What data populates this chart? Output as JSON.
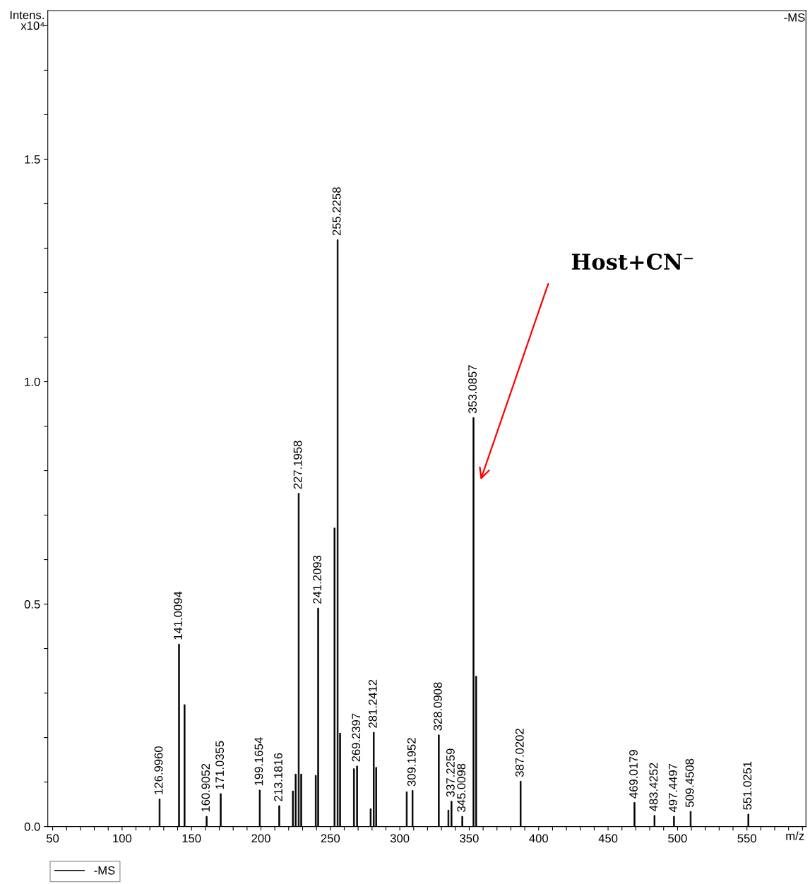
{
  "chart_data": {
    "type": "bar",
    "xlabel": "m/z",
    "ylabel": "Intens.\nx10⁴",
    "x": [
      126.996,
      141.0094,
      145,
      160.9052,
      171.0355,
      199.1654,
      213.1816,
      223,
      225,
      227.1958,
      229,
      239.5,
      241.2093,
      253,
      255.2258,
      257,
      267,
      269.2397,
      279,
      281.2412,
      283,
      305,
      309.1952,
      328.0908,
      335,
      337.2259,
      345.0098,
      353.0857,
      355,
      387.0202,
      469.0179,
      483.4252,
      497.4497,
      509.4508,
      551.0251
    ],
    "series": [
      {
        "name": "-MS",
        "color": "#000000",
        "values": [
          0.062,
          0.41,
          0.274,
          0.023,
          0.074,
          0.082,
          0.047,
          0.08,
          0.118,
          0.749,
          0.118,
          0.115,
          0.491,
          0.671,
          1.319,
          0.21,
          0.13,
          0.136,
          0.04,
          0.212,
          0.133,
          0.078,
          0.081,
          0.206,
          0.037,
          0.057,
          0.023,
          0.919,
          0.338,
          0.102,
          0.054,
          0.025,
          0.023,
          0.034,
          0.028
        ]
      }
    ],
    "xlim": [
      46.5,
      592.5
    ],
    "xticks": [
      50,
      {
        "value": 60,
        "label": null
      },
      {
        "value": 70,
        "label": null
      },
      {
        "value": 80,
        "label": null
      },
      {
        "value": 90,
        "label": null
      },
      100,
      {
        "value": 110,
        "label": null
      },
      {
        "value": 120,
        "label": null
      },
      {
        "value": 130,
        "label": null
      },
      {
        "value": 140,
        "label": null
      },
      150,
      {
        "value": 160,
        "label": null
      },
      {
        "value": 170,
        "label": null
      },
      {
        "value": 180,
        "label": null
      },
      {
        "value": 190,
        "label": null
      },
      200,
      {
        "value": 210,
        "label": null
      },
      {
        "value": 220,
        "label": null
      },
      {
        "value": 230,
        "label": null
      },
      {
        "value": 240,
        "label": null
      },
      250,
      {
        "value": 260,
        "label": null
      },
      {
        "value": 270,
        "label": null
      },
      {
        "value": 280,
        "label": null
      },
      {
        "value": 290,
        "label": null
      },
      300,
      {
        "value": 310,
        "label": null
      },
      {
        "value": 320,
        "label": null
      },
      {
        "value": 330,
        "label": null
      },
      {
        "value": 340,
        "label": null
      },
      350,
      {
        "value": 360,
        "label": null
      },
      {
        "value": 370,
        "label": null
      },
      {
        "value": 380,
        "label": null
      },
      {
        "value": 390,
        "label": null
      },
      400,
      {
        "value": 410,
        "label": null
      },
      {
        "value": 420,
        "label": null
      },
      {
        "value": 430,
        "label": null
      },
      {
        "value": 440,
        "label": null
      },
      450,
      {
        "value": 460,
        "label": null
      },
      {
        "value": 470,
        "label": null
      },
      {
        "value": 480,
        "label": null
      },
      {
        "value": 490,
        "label": null
      },
      500,
      {
        "value": 510,
        "label": null
      },
      {
        "value": 520,
        "label": null
      },
      {
        "value": 530,
        "label": null
      },
      {
        "value": 540,
        "label": null
      },
      550,
      {
        "value": 560,
        "label": null
      },
      {
        "value": 570,
        "label": null
      },
      {
        "value": 580,
        "label": null
      },
      {
        "value": 590,
        "label": null
      }
    ],
    "ylim": [
      0,
      1.834
    ],
    "yticks": [
      {
        "value": 0,
        "label": "0.0"
      },
      {
        "value": 0.1,
        "label": null
      },
      {
        "value": 0.2,
        "label": null
      },
      {
        "value": 0.3,
        "label": null
      },
      {
        "value": 0.4,
        "label": null
      },
      0.5,
      {
        "value": 0.6,
        "label": null
      },
      {
        "value": 0.7,
        "label": null
      },
      {
        "value": 0.8,
        "label": null
      },
      {
        "value": 0.9,
        "label": null
      },
      {
        "value": 1.0,
        "label": "1.0"
      },
      {
        "value": 1.1,
        "label": null
      },
      {
        "value": 1.2,
        "label": null
      },
      {
        "value": 1.3,
        "label": null
      },
      {
        "value": 1.4,
        "label": null
      },
      1.5,
      {
        "value": 1.6,
        "label": null
      },
      {
        "value": 1.7,
        "label": null
      },
      {
        "value": 1.8,
        "label": null
      }
    ],
    "annotations": [
      "Host+CN⁻",
      "-MS",
      {
        "text": "126.9960",
        "x": 126.996,
        "y": 0.062
      },
      {
        "text": "141.0094",
        "x": 141.0094,
        "y": 0.41
      },
      {
        "text": "160.9052",
        "x": 160.9052,
        "y": 0.023
      },
      {
        "text": "171.0355",
        "x": 171.0355,
        "y": 0.074
      },
      {
        "text": "199.1654",
        "x": 199.1654,
        "y": 0.082
      },
      {
        "text": "213.1816",
        "x": 213.1816,
        "y": 0.047
      },
      {
        "text": "227.1958",
        "x": 227.1958,
        "y": 0.749
      },
      {
        "text": "241.2093",
        "x": 241.2093,
        "y": 0.491
      },
      {
        "text": "255.2258",
        "x": 255.2258,
        "y": 1.319
      },
      {
        "text": "269.2397",
        "x": 269.2397,
        "y": 0.136
      },
      {
        "text": "281.2412",
        "x": 281.2412,
        "y": 0.212
      },
      {
        "text": "309.1952",
        "x": 309.1952,
        "y": 0.081
      },
      {
        "text": "328.0908",
        "x": 328.0908,
        "y": 0.206
      },
      {
        "text": "337.2259",
        "x": 337.2259,
        "y": 0.057
      },
      {
        "text": "345.0098",
        "x": 345.0098,
        "y": 0.023
      },
      {
        "text": "353.0857",
        "x": 353.0857,
        "y": 0.919
      },
      {
        "text": "387.0202",
        "x": 387.0202,
        "y": 0.102
      },
      {
        "text": "469.0179",
        "x": 469.0179,
        "y": 0.054
      },
      {
        "text": "483.4252",
        "x": 483.4252,
        "y": 0.025
      },
      {
        "text": "497.4497",
        "x": 497.4497,
        "y": 0.023
      },
      {
        "text": "509.4508",
        "x": 509.4508,
        "y": 0.034
      },
      {
        "text": "551.0251",
        "x": 551.0251,
        "y": 0.028
      }
    ],
    "legend": "bottom",
    "grid": false
  }
}
